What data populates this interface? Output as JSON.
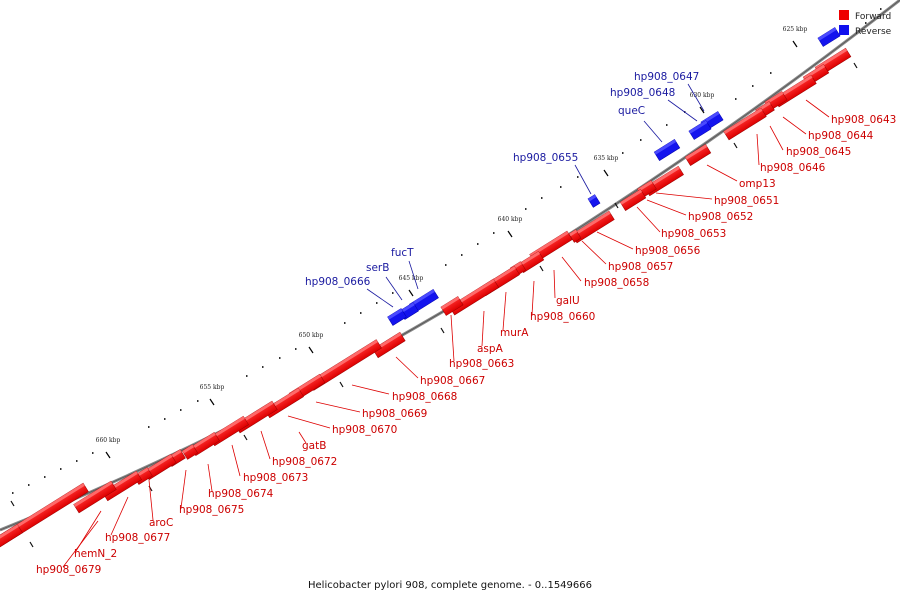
{
  "caption": "Helicobacter pylori 908, complete genome. - 0..1549666",
  "legend": [
    {
      "label": "Forward",
      "color": "#ee0000"
    },
    {
      "label": "Reverse",
      "color": "#1010ee"
    }
  ],
  "colors": {
    "forward": "#ee0000",
    "forward_dark": "#aa0000",
    "reverse": "#1010ee",
    "reverse_dark": "#0000aa",
    "backbone": "#777777"
  },
  "ticks": [
    {
      "label": "625 kbp"
    },
    {
      "label": "630 kbp"
    },
    {
      "label": "635 kbp"
    },
    {
      "label": "640 kbp"
    },
    {
      "label": "645 kbp"
    },
    {
      "label": "650 kbp"
    },
    {
      "label": "655 kbp"
    },
    {
      "label": "660 kbp"
    }
  ],
  "forward_labels": [
    "hp908_0643",
    "hp908_0644",
    "hp908_0645",
    "hp908_0646",
    "omp13",
    "hp908_0651",
    "hp908_0652",
    "hp908_0653",
    "hp908_0656",
    "hp908_0657",
    "hp908_0658",
    "galU",
    "hp908_0660",
    "murA",
    "aspA",
    "hp908_0663",
    "hp908_0667",
    "hp908_0668",
    "hp908_0669",
    "hp908_0670",
    "gatB",
    "hp908_0672",
    "hp908_0673",
    "hp908_0674",
    "hp908_0675",
    "aroC",
    "hp908_0677",
    "hemN_2",
    "hp908_0679"
  ],
  "reverse_labels": [
    "hp908_0647",
    "hp908_0648",
    "queC",
    "hp908_0655",
    "fucT",
    "serB",
    "hp908_0666"
  ]
}
